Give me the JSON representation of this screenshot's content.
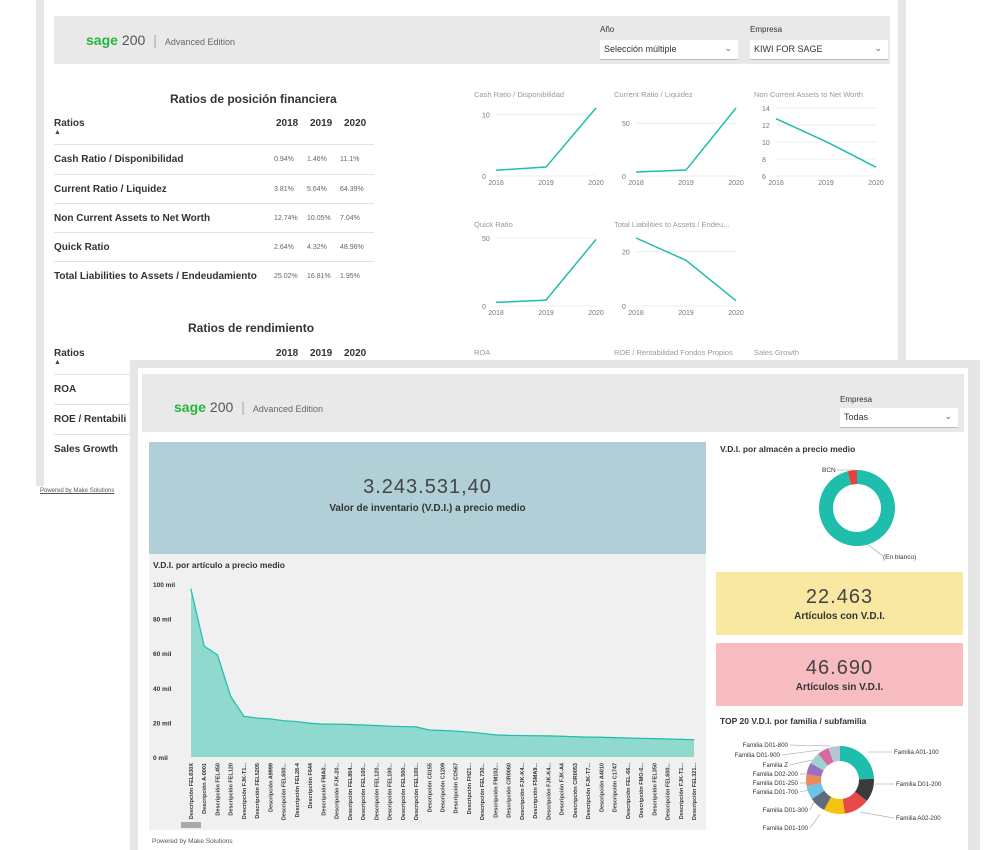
{
  "report1": {
    "header": {
      "logo_word": "sage",
      "logo_num": "200",
      "logo_edition": "Advanced Edition",
      "filter_year_label": "Año",
      "filter_year_value": "Selección múltiple",
      "filter_company_label": "Empresa",
      "filter_company_value": "KIWI FOR SAGE"
    },
    "financial": {
      "title": "Ratios de posición financiera",
      "col_name": "Ratios",
      "years": [
        "2018",
        "2019",
        "2020"
      ],
      "rows": [
        {
          "name": "Cash Ratio / Disponibilidad",
          "v": [
            "0.94%",
            "1.46%",
            "11.1%"
          ]
        },
        {
          "name": "Current Ratio / Liquidez",
          "v": [
            "3.81%",
            "5.64%",
            "64.39%"
          ]
        },
        {
          "name": "Non Current Assets to Net Worth",
          "v": [
            "12.74%",
            "10.05%",
            "7.04%"
          ]
        },
        {
          "name": "Quick Ratio",
          "v": [
            "2.64%",
            "4.32%",
            "48.96%"
          ]
        },
        {
          "name": "Total Liabilities to Assets / Endeudamiento",
          "v": [
            "25.02%",
            "16.81%",
            "1.95%"
          ]
        }
      ]
    },
    "performance": {
      "title": "Ratios de rendimiento",
      "col_name": "Ratios",
      "years": [
        "2018",
        "2019",
        "2020"
      ],
      "rows": [
        {
          "name": "ROA"
        },
        {
          "name": "ROE / Rentabili"
        },
        {
          "name": "Sales Growth"
        }
      ]
    },
    "footer": "Powered by Make Solutions"
  },
  "report2": {
    "header": {
      "logo_word": "sage",
      "logo_num": "200",
      "logo_edition": "Advanced Edition",
      "filter_company_label": "Empresa",
      "filter_company_value": "Todas"
    },
    "kpi_main": {
      "value": "3.243.531,40",
      "label": "Valor de inventario (V.D.I.) a precio medio"
    },
    "kpi_with": {
      "value": "22.463",
      "label": "Artículos con V.D.I."
    },
    "kpi_without": {
      "value": "46.690",
      "label": "Artículos sin V.D.I."
    },
    "area_title": "V.D.I. por artículo a precio medio",
    "donut1_title": "V.D.I. por almacén a precio medio",
    "donut2_title": "TOP 20 V.D.I. por familia / subfamilia",
    "footer": "Powered by Make Solutions"
  },
  "colors": {
    "teal": "#1fbdab",
    "kpi_blue": "#b1cfd6",
    "kpi_yellow": "#f9e8a2",
    "kpi_pink": "#f6bcbf",
    "sage_green": "#27b43c"
  },
  "chart_data": [
    {
      "type": "line",
      "title": "Cash Ratio / Disponibilidad",
      "x": [
        "2018",
        "2019",
        "2020"
      ],
      "values": [
        0.94,
        1.46,
        11.1
      ],
      "yticks": [
        0,
        10
      ]
    },
    {
      "type": "line",
      "title": "Current Ratio / Liquidez",
      "x": [
        "2018",
        "2019",
        "2020"
      ],
      "values": [
        3.81,
        5.64,
        64.39
      ],
      "yticks": [
        0,
        50
      ]
    },
    {
      "type": "line",
      "title": "Non Current Assets to Net Worth",
      "x": [
        "2018",
        "2019",
        "2020"
      ],
      "values": [
        12.74,
        10.05,
        7.04
      ],
      "yticks": [
        6,
        8,
        10,
        12,
        14
      ]
    },
    {
      "type": "line",
      "title": "Quick Ratio",
      "x": [
        "2018",
        "2019",
        "2020"
      ],
      "values": [
        2.64,
        4.32,
        48.96
      ],
      "yticks": [
        0,
        50
      ]
    },
    {
      "type": "line",
      "title": "Total Liabilities to Assets / Endeu...",
      "x": [
        "2018",
        "2019",
        "2020"
      ],
      "values": [
        25.02,
        16.81,
        1.95
      ],
      "yticks": [
        0,
        20
      ]
    },
    {
      "type": "line",
      "title": "ROA",
      "x": [],
      "values": []
    },
    {
      "type": "line",
      "title": "ROE / Rentabilidad Fondos Propios",
      "x": [],
      "values": []
    },
    {
      "type": "line",
      "title": "Sales Growth",
      "x": [],
      "values": []
    },
    {
      "type": "area",
      "title": "V.D.I. por artículo a precio medio",
      "yticks": [
        "0 mil",
        "20 mil",
        "40 mil",
        "60 mil",
        "80 mil",
        "100 mil"
      ],
      "ylim": [
        0,
        100
      ],
      "categories": [
        "Descripción FEL830X",
        "Descripción A-0001",
        "Descripción FEL450",
        "Descripción FEL120",
        "Descripción FJK-T1...",
        "Descripción FEL5205",
        "Descripción A9999",
        "Descripción FEL600...",
        "Descripción FEL28-4",
        "Descripción F644",
        "Descripción FMA0...",
        "Descripción FJK-20...",
        "Descripción FEL864...",
        "Descripción FEL100...",
        "Descripción FEL120...",
        "Descripción FEL100...",
        "Descripción FEL500...",
        "Descripción FEL100...",
        "Descripción C0155",
        "Descripción C1209",
        "Descripción CO567",
        "Descripción FHZ1...",
        "Descripción FEL730...",
        "Descripción FM102...",
        "Descripción CIR0060",
        "Descripción FJK-K4...",
        "Descripción F5MA9...",
        "Descripción FJK-K4...",
        "Descripción FJK-A4",
        "Descripción CIR0053",
        "Descripción FJK-T7...",
        "Descripción A4010",
        "Descripción C1747",
        "Descripción FEL-66...",
        "Descripción FMO-6...",
        "Descripción FEL350",
        "Descripción FEL600...",
        "Descripción FJK-T1...",
        "Descripción FEL321..."
      ],
      "values": [
        97,
        64,
        59,
        35,
        23.5,
        22.5,
        22,
        21,
        20.5,
        19.5,
        19,
        19,
        18.8,
        18.5,
        18.2,
        17.8,
        17.6,
        17.4,
        15.6,
        15.3,
        15,
        14.4,
        13.7,
        12.8,
        12.5,
        12.4,
        12.3,
        12.2,
        12,
        11.7,
        11.5,
        11.4,
        11.2,
        11,
        10.8,
        10.6,
        10.4,
        10.2,
        10
      ]
    },
    {
      "type": "pie",
      "title": "V.D.I. por almacén a precio medio",
      "labels": [
        "(En blanco)",
        "BCN"
      ],
      "values": [
        96,
        4
      ]
    },
    {
      "type": "pie",
      "title": "TOP 20 V.D.I. por familia / subfamilia",
      "labels": [
        "Familia A01-100",
        "Familia D01-200",
        "Familia A02-200",
        "Familia D01-100",
        "Familia D01-300",
        "Familia D01-700",
        "Familia D01-250",
        "Familia D02-200",
        "Familia Z",
        "Familia D01-900",
        "Familia D01-800"
      ],
      "values": [
        22,
        10,
        11,
        9,
        7,
        6,
        5,
        5,
        5,
        5,
        5
      ]
    }
  ]
}
